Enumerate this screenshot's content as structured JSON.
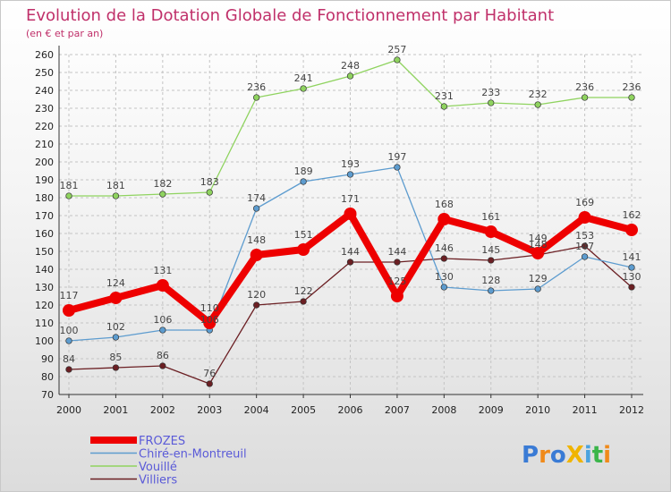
{
  "chart_data": {
    "type": "line",
    "title": "Evolution de la Dotation Globale de Fonctionnement par Habitant",
    "subtitle": "(en € et par an)",
    "xlabel": "",
    "ylabel": "",
    "x": [
      "2000",
      "2001",
      "2002",
      "2003",
      "2004",
      "2005",
      "2006",
      "2007",
      "2008",
      "2009",
      "2010",
      "2011",
      "2012"
    ],
    "ylim": [
      70,
      260
    ],
    "ystep": 10,
    "grid": true,
    "legend_position": "bottom-left",
    "series": [
      {
        "name": "FROZES",
        "color": "#ee0000",
        "values": [
          117,
          124,
          131,
          110,
          148,
          151,
          171,
          125,
          168,
          161,
          149,
          169,
          162
        ]
      },
      {
        "name": "Chiré-en-Montreuil",
        "color": "#5d9ccf",
        "values": [
          100,
          102,
          106,
          106,
          174,
          189,
          193,
          197,
          130,
          128,
          129,
          147,
          141
        ]
      },
      {
        "name": "Vouillé",
        "color": "#8fd35f",
        "values": [
          181,
          181,
          182,
          183,
          236,
          241,
          248,
          257,
          231,
          233,
          232,
          236,
          236
        ]
      },
      {
        "name": "Villiers",
        "color": "#6b1f23",
        "values": [
          84,
          85,
          86,
          76,
          120,
          122,
          144,
          144,
          146,
          145,
          148,
          153,
          130
        ]
      }
    ],
    "data_labels": {
      "FROZES": [
        "117",
        "124",
        "131",
        "110",
        "148",
        "151",
        "171",
        "125",
        "168",
        "161",
        "149",
        "169",
        "162"
      ],
      "Chiré-en-Montreuil": [
        "100",
        "102",
        "106",
        "106",
        "174",
        "189",
        "193",
        "197",
        "130",
        "128",
        "129",
        "147",
        "141"
      ],
      "Vouillé": [
        "181",
        "181",
        "182",
        "183",
        "236",
        "241",
        "248",
        "257",
        "231",
        "233",
        "232",
        "236",
        "236"
      ],
      "Villiers": [
        "84",
        "85",
        "86",
        "76",
        "120",
        "122",
        "144",
        "144",
        "146",
        "145",
        "148",
        "153",
        "130"
      ]
    }
  },
  "logo": {
    "text": "ProXiti"
  }
}
